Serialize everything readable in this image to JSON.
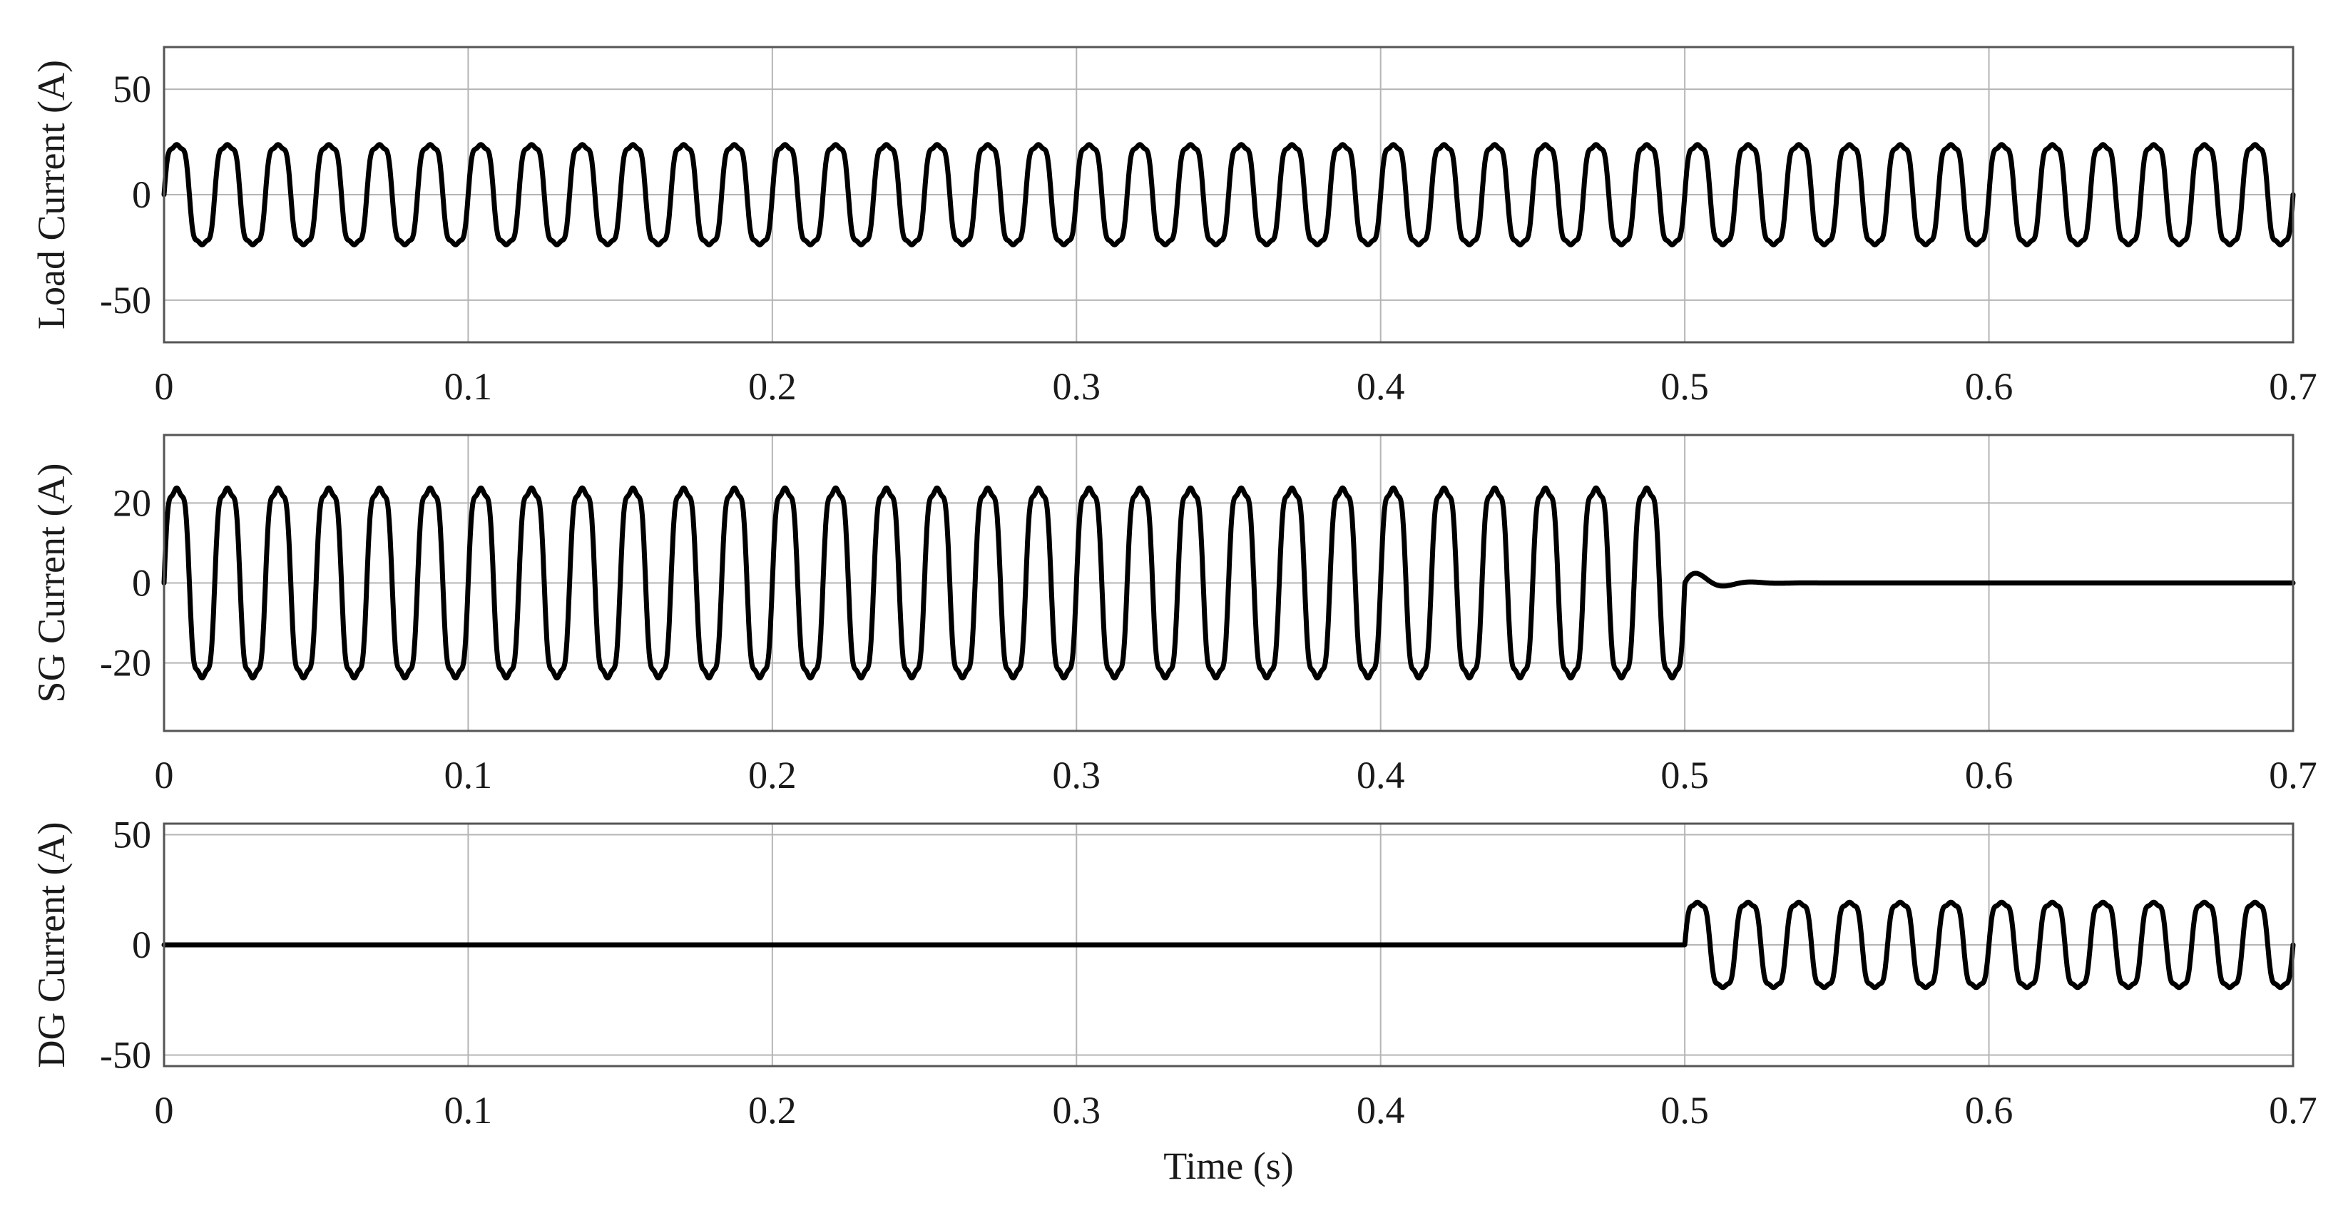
{
  "chart_data": [
    {
      "type": "line",
      "ylabel": "Load Current (A)",
      "xlabel": "",
      "xlim": [
        0,
        0.7
      ],
      "ylim": [
        -70,
        70
      ],
      "xticks": [
        0,
        0.1,
        0.2,
        0.3,
        0.4,
        0.5,
        0.6,
        0.7
      ],
      "xtick_labels": [
        "0",
        "0.1",
        "0.2",
        "0.3",
        "0.4",
        "0.5",
        "0.6",
        "0.7"
      ],
      "yticks": [
        -50,
        0,
        50
      ],
      "ytick_labels": [
        "-50",
        "0",
        "50"
      ],
      "grid": true,
      "series": [
        {
          "waveform": "distorted-sine",
          "frequency_hz": 60,
          "segments": [
            {
              "x_start": 0,
              "x_end": 0.7,
              "amplitude": 27
            }
          ]
        }
      ]
    },
    {
      "type": "line",
      "ylabel": "SG Current (A)",
      "xlabel": "",
      "xlim": [
        0,
        0.7
      ],
      "ylim": [
        -37,
        37
      ],
      "xticks": [
        0,
        0.1,
        0.2,
        0.3,
        0.4,
        0.5,
        0.6,
        0.7
      ],
      "xtick_labels": [
        "0",
        "0.1",
        "0.2",
        "0.3",
        "0.4",
        "0.5",
        "0.6",
        "0.7"
      ],
      "yticks": [
        -20,
        0,
        20
      ],
      "ytick_labels": [
        "-20",
        "0",
        "20"
      ],
      "grid": true,
      "series": [
        {
          "waveform": "distorted-sine",
          "frequency_hz": 60,
          "segments": [
            {
              "x_start": 0,
              "x_end": 0.5,
              "amplitude": 27
            },
            {
              "x_start": 0.5,
              "x_end": 0.7,
              "amplitude": 0,
              "transient_peak": 4
            }
          ]
        }
      ]
    },
    {
      "type": "line",
      "ylabel": "DG Current (A)",
      "xlabel": "Time (s)",
      "xlim": [
        0,
        0.7
      ],
      "ylim": [
        -55,
        55
      ],
      "xticks": [
        0,
        0.1,
        0.2,
        0.3,
        0.4,
        0.5,
        0.6,
        0.7
      ],
      "xtick_labels": [
        "0",
        "0.1",
        "0.2",
        "0.3",
        "0.4",
        "0.5",
        "0.6",
        "0.7"
      ],
      "yticks": [
        -50,
        0,
        50
      ],
      "ytick_labels": [
        "-50",
        "0",
        "50"
      ],
      "grid": true,
      "series": [
        {
          "waveform": "distorted-sine",
          "frequency_hz": 60,
          "segments": [
            {
              "x_start": 0,
              "x_end": 0.5,
              "amplitude": 0
            },
            {
              "x_start": 0.5,
              "x_end": 0.7,
              "amplitude": 22
            }
          ]
        }
      ]
    }
  ]
}
